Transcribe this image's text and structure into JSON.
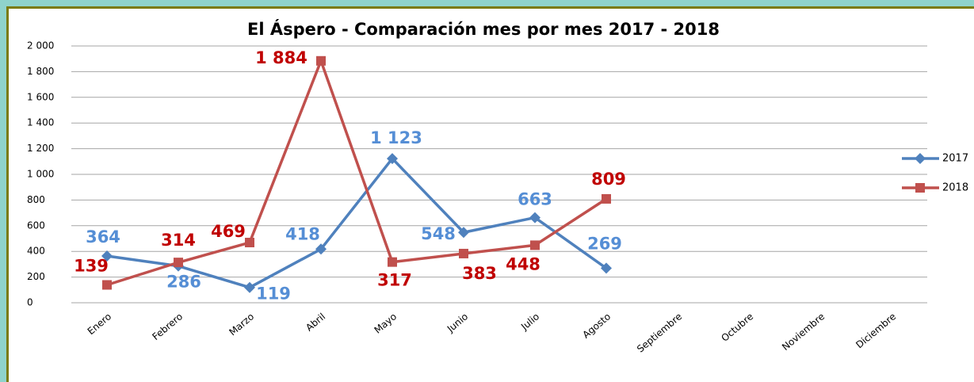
{
  "chart_data": {
    "type": "line",
    "title": "El Áspero - Comparación mes por mes 2017 - 2018",
    "categories": [
      "Enero",
      "Febrero",
      "Marzo",
      "Abril",
      "Mayo",
      "Junio",
      "Julio",
      "Agosto",
      "Septiembre",
      "Octubre",
      "Noviembre",
      "Diciembre"
    ],
    "series": [
      {
        "name": "2017",
        "color": "#4f81bd",
        "label_color": "#558ed5",
        "marker": "diamond",
        "values": [
          364,
          286,
          119,
          418,
          1123,
          548,
          663,
          269,
          null,
          null,
          null,
          null
        ],
        "value_labels": [
          "364",
          "286",
          "119",
          "418",
          "1 123",
          "548",
          "663",
          "269",
          null,
          null,
          null,
          null
        ]
      },
      {
        "name": "2018",
        "color": "#c0504d",
        "label_color": "#c00000",
        "marker": "square",
        "values": [
          139,
          314,
          469,
          1884,
          317,
          383,
          448,
          809,
          null,
          null,
          null,
          null
        ],
        "value_labels": [
          "139",
          "314",
          "469",
          "1 884",
          "317",
          "383",
          "448",
          "809",
          null,
          null,
          null,
          null
        ]
      }
    ],
    "ylim": [
      0,
      2000
    ],
    "yticks": [
      0,
      200,
      400,
      600,
      800,
      {
        "value": 1000,
        "label": "1 000"
      },
      {
        "value": 1200,
        "label": "1 200"
      },
      {
        "value": 1400,
        "label": "1 400"
      },
      {
        "value": 1600,
        "label": "1 600"
      },
      {
        "value": 1800,
        "label": "1 800"
      },
      {
        "value": 2000,
        "label": "2 000"
      }
    ],
    "grid": true,
    "legend": "right"
  }
}
